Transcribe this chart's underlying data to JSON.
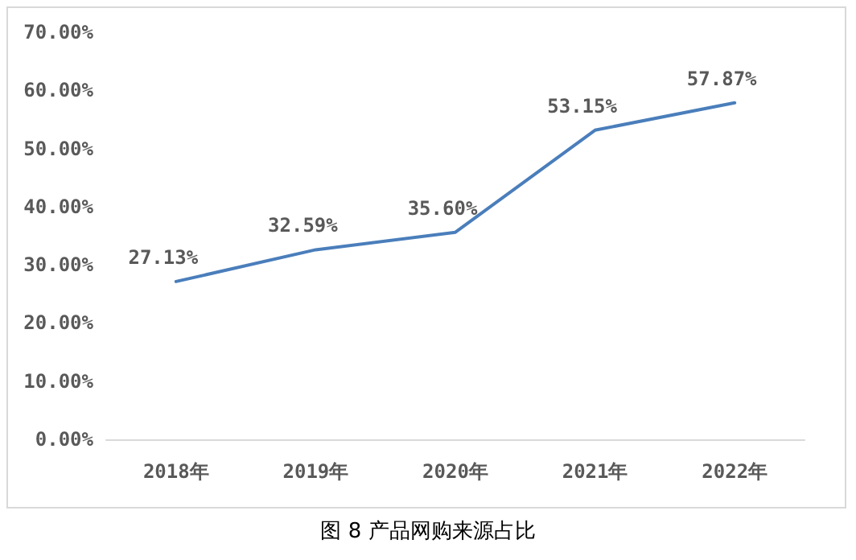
{
  "chart_data": {
    "type": "line",
    "title": "图 8 产品网购来源占比",
    "categories": [
      "2018年",
      "2019年",
      "2020年",
      "2021年",
      "2022年"
    ],
    "series": [
      {
        "color": "#4a7ebb",
        "values": [
          27.13,
          32.59,
          35.6,
          53.15,
          57.87
        ],
        "value_labels": [
          "27.13%",
          "32.59%",
          "35.60%",
          "53.15%",
          "57.87%"
        ]
      }
    ],
    "ylim": [
      0,
      70
    ],
    "yticks": [
      {
        "value": 0,
        "label": "0.00%"
      },
      {
        "value": 10,
        "label": "10.00%"
      },
      {
        "value": 20,
        "label": "20.00%"
      },
      {
        "value": 30,
        "label": "30.00%"
      },
      {
        "value": 40,
        "label": "40.00%"
      },
      {
        "value": 50,
        "label": "50.00%"
      },
      {
        "value": 60,
        "label": "60.00%"
      },
      {
        "value": 70,
        "label": "70.00%"
      }
    ],
    "grid": false,
    "marker": "none",
    "line_style": "solid"
  }
}
